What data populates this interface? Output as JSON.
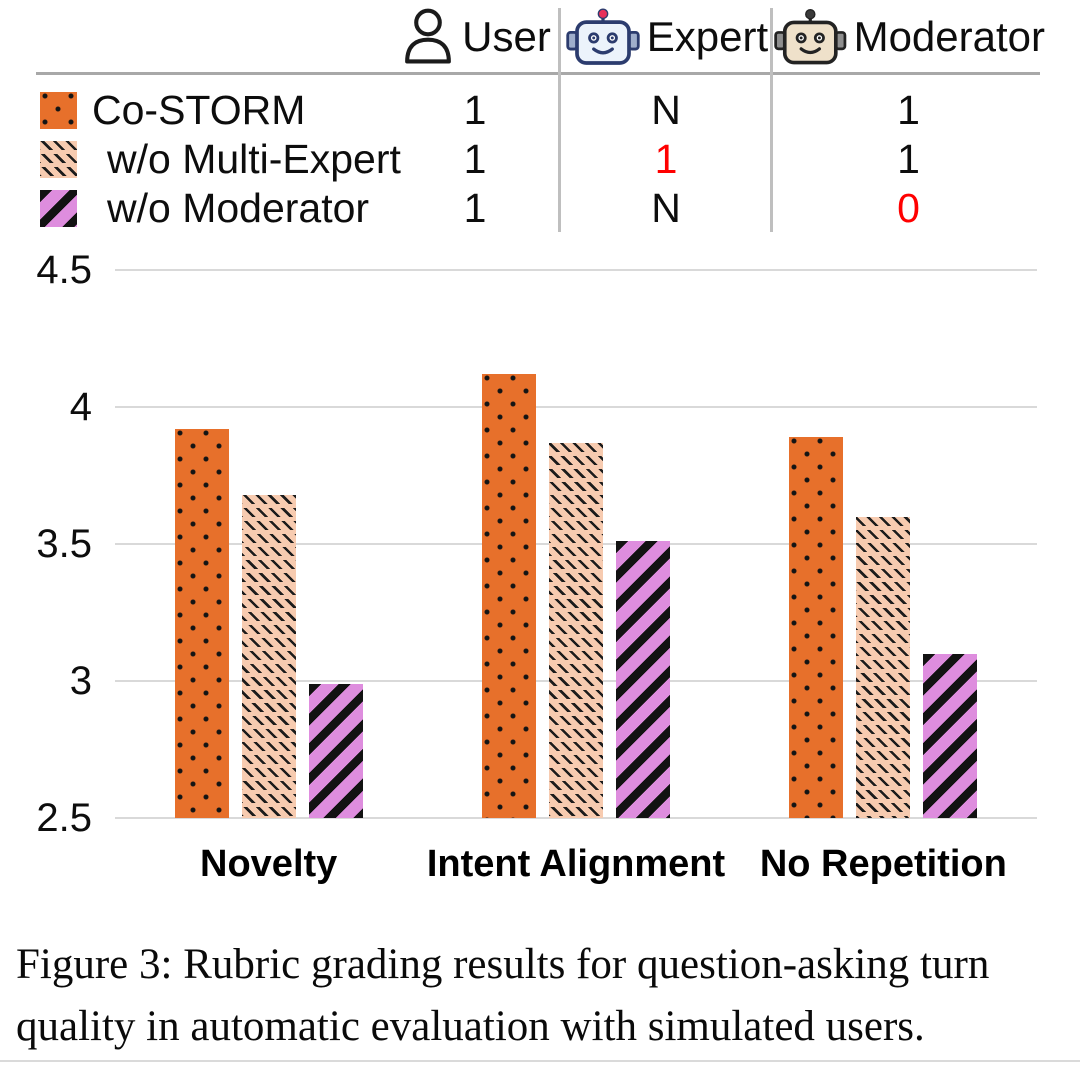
{
  "table": {
    "columns": [
      {
        "label": "User",
        "icon": "user-icon"
      },
      {
        "label": "Expert",
        "icon": "robot-expert-icon"
      },
      {
        "label": "Moderator",
        "icon": "robot-moderator-icon"
      }
    ],
    "rows": [
      {
        "label": "Co-STORM",
        "pattern": "dots",
        "user": "1",
        "expert": "N",
        "moderator": "1"
      },
      {
        "label": "w/o Multi-Expert",
        "pattern": "hatch",
        "user": "1",
        "expert": "1",
        "moderator": "1",
        "expert_highlight": "red"
      },
      {
        "label": "w/o Moderator",
        "pattern": "stripe",
        "user": "1",
        "expert": "N",
        "moderator": "0",
        "moderator_highlight": "red"
      }
    ]
  },
  "chart_data": {
    "type": "bar",
    "categories": [
      "Novelty",
      "Intent Alignment",
      "No Repetition"
    ],
    "series": [
      {
        "name": "Co-STORM",
        "pattern": "dots",
        "color": "#e7702b",
        "values": [
          3.92,
          4.12,
          3.89
        ]
      },
      {
        "name": "w/o Multi-Expert",
        "pattern": "hatch",
        "color": "#f7cbb0",
        "values": [
          3.68,
          3.87,
          3.6
        ]
      },
      {
        "name": "w/o Moderator",
        "pattern": "stripe",
        "color": "#de8dde",
        "values": [
          2.99,
          3.51,
          3.1
        ]
      }
    ],
    "title": "",
    "xlabel": "",
    "ylabel": "",
    "ylim": [
      2.5,
      4.5
    ],
    "yticks": [
      4.5,
      4.0,
      3.5,
      3.0,
      2.5
    ],
    "ytick_labels": [
      "4.5",
      "4",
      "3.5",
      "3",
      "2.5"
    ],
    "grid": true,
    "legend_position": "table-top"
  },
  "colors": {
    "highlight_red": "#ff0000",
    "gridline": "#d9d9d9",
    "table_rule": "#a8a8a8",
    "table_divider": "#bfbfbf"
  },
  "caption": {
    "lines": [
      "Figure 3: Rubric grading results for question-asking turn",
      "quality in automatic evaluation with simulated users."
    ]
  }
}
